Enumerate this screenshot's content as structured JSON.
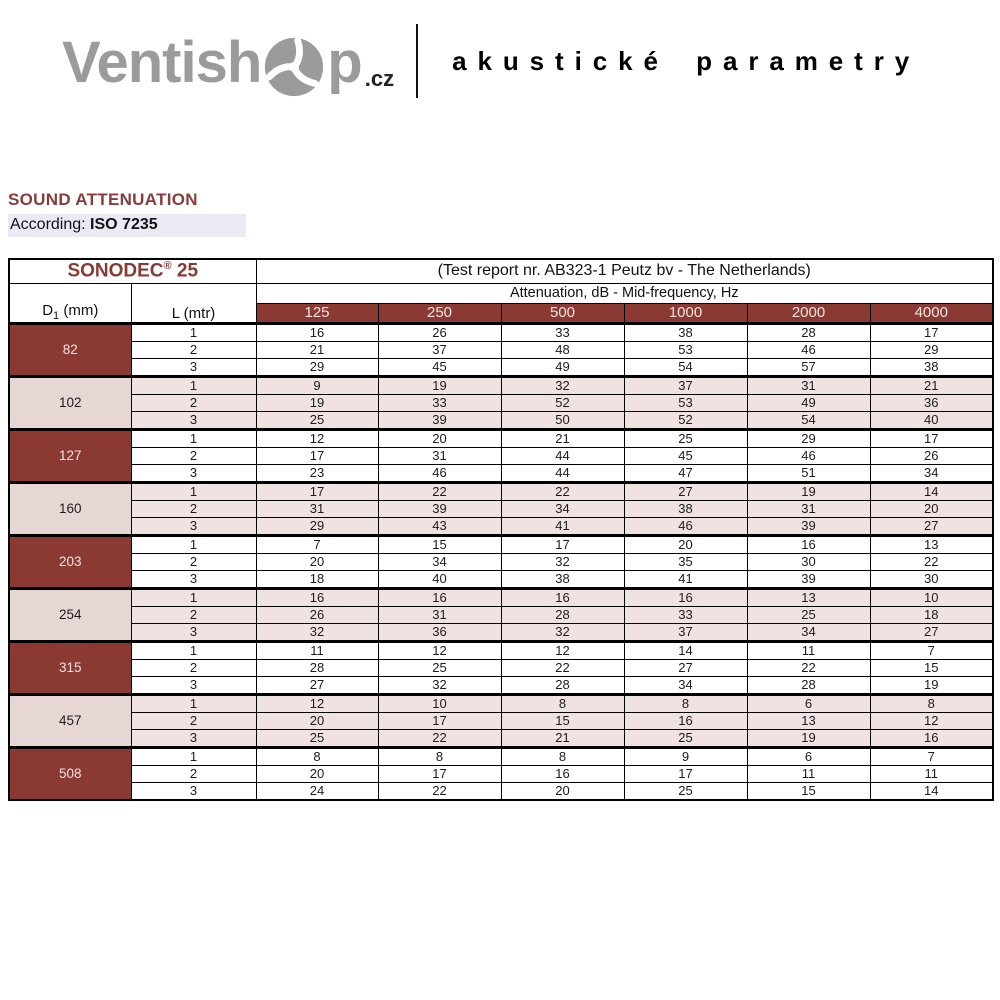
{
  "header": {
    "logo_part1": "Ventish",
    "logo_part2": "p",
    "logo_tld": ".cz",
    "tagline": "akustické parametry"
  },
  "section": {
    "title": "SOUND ATTENUATION",
    "according_label": "According:",
    "according_value": "ISO 7235"
  },
  "colors": {
    "dark_red": "#8a3a33",
    "row_pink": "#efe2e1",
    "diameter_pink": "#e6d7d5",
    "logo_gray": "#9b9b9b",
    "according_highlight": "#e9eaf4"
  },
  "chart_data": {
    "type": "table",
    "product": "SONODEC",
    "product_reg": "®",
    "product_size": "25",
    "test_report": "(Test report nr. AB323-1 Peutz bv - The Netherlands)",
    "attenuation_header": "Attenuation, dB - Mid-frequency, Hz",
    "col_headers": {
      "d_base": "D",
      "d_sub": "1",
      "d_unit": "(mm)",
      "l_label": "L (mtr)"
    },
    "frequencies_hz": [
      "125",
      "250",
      "500",
      "1000",
      "2000",
      "4000"
    ],
    "groups": [
      {
        "diameter": "82",
        "shade": "dark",
        "lengths": [
          "1",
          "2",
          "3"
        ],
        "rows": [
          [
            16,
            26,
            33,
            38,
            28,
            17
          ],
          [
            21,
            37,
            48,
            53,
            46,
            29
          ],
          [
            29,
            45,
            49,
            54,
            57,
            38
          ]
        ]
      },
      {
        "diameter": "102",
        "shade": "light",
        "lengths": [
          "1",
          "2",
          "3"
        ],
        "rows": [
          [
            9,
            19,
            32,
            37,
            31,
            21
          ],
          [
            19,
            33,
            52,
            53,
            49,
            36
          ],
          [
            25,
            39,
            50,
            52,
            54,
            40
          ]
        ]
      },
      {
        "diameter": "127",
        "shade": "dark",
        "lengths": [
          "1",
          "2",
          "3"
        ],
        "rows": [
          [
            12,
            20,
            21,
            25,
            29,
            17
          ],
          [
            17,
            31,
            44,
            45,
            46,
            26
          ],
          [
            23,
            46,
            44,
            47,
            51,
            34
          ]
        ]
      },
      {
        "diameter": "160",
        "shade": "light",
        "lengths": [
          "1",
          "2",
          "3"
        ],
        "rows": [
          [
            17,
            22,
            22,
            27,
            19,
            14
          ],
          [
            31,
            39,
            34,
            38,
            31,
            20
          ],
          [
            29,
            43,
            41,
            46,
            39,
            27
          ]
        ]
      },
      {
        "diameter": "203",
        "shade": "dark",
        "lengths": [
          "1",
          "2",
          "3"
        ],
        "rows": [
          [
            7,
            15,
            17,
            20,
            16,
            13
          ],
          [
            20,
            34,
            32,
            35,
            30,
            22
          ],
          [
            18,
            40,
            38,
            41,
            39,
            30
          ]
        ]
      },
      {
        "diameter": "254",
        "shade": "light",
        "lengths": [
          "1",
          "2",
          "3"
        ],
        "rows": [
          [
            16,
            16,
            16,
            16,
            13,
            10
          ],
          [
            26,
            31,
            28,
            33,
            25,
            18
          ],
          [
            32,
            36,
            32,
            37,
            34,
            27
          ]
        ]
      },
      {
        "diameter": "315",
        "shade": "dark",
        "lengths": [
          "1",
          "2",
          "3"
        ],
        "rows": [
          [
            11,
            12,
            12,
            14,
            11,
            7
          ],
          [
            28,
            25,
            22,
            27,
            22,
            15
          ],
          [
            27,
            32,
            28,
            34,
            28,
            19
          ]
        ]
      },
      {
        "diameter": "457",
        "shade": "light",
        "lengths": [
          "1",
          "2",
          "3"
        ],
        "rows": [
          [
            12,
            10,
            8,
            8,
            6,
            8
          ],
          [
            20,
            17,
            15,
            16,
            13,
            12
          ],
          [
            25,
            22,
            21,
            25,
            19,
            16
          ]
        ]
      },
      {
        "diameter": "508",
        "shade": "dark",
        "lengths": [
          "1",
          "2",
          "3"
        ],
        "rows": [
          [
            8,
            8,
            8,
            9,
            6,
            7
          ],
          [
            20,
            17,
            16,
            17,
            11,
            11
          ],
          [
            24,
            22,
            20,
            25,
            15,
            14
          ]
        ]
      }
    ]
  }
}
